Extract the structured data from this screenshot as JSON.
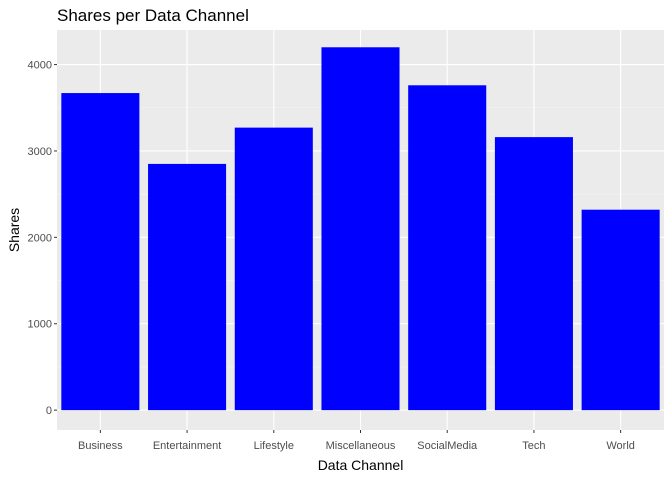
{
  "chart_data": {
    "type": "bar",
    "title": "Shares per Data Channel",
    "xlabel": "Data Channel",
    "ylabel": "Shares",
    "categories": [
      "Business",
      "Entertainment",
      "Lifestyle",
      "Miscellaneous",
      "SocialMedia",
      "Tech",
      "World"
    ],
    "values": [
      3670,
      2850,
      3270,
      4200,
      3760,
      3160,
      2320
    ],
    "ylim": [
      -230,
      4400
    ],
    "yticks": [
      0,
      1000,
      2000,
      3000,
      4000
    ],
    "ytick_labels": [
      "0",
      "1000",
      "2000",
      "3000",
      "4000"
    ],
    "grid": true,
    "legend": "none",
    "colors": {
      "bar": "#0000FF",
      "panel_background": "#EBEBEB",
      "grid_major": "#FFFFFF",
      "grid_minor": "#F5F5F5",
      "tick_text": "#4D4D4D",
      "tick_mark": "#333333"
    }
  }
}
